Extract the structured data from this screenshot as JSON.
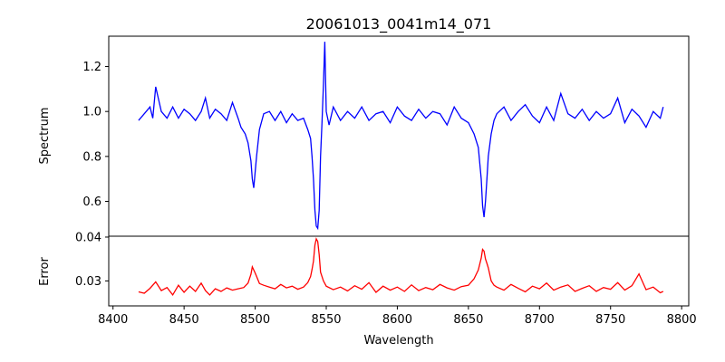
{
  "chart_data": {
    "type": "line",
    "title": "20061013_0041m14_071",
    "xlabel": "Wavelength",
    "xlim": [
      8397,
      8805
    ],
    "xticks": [
      8400,
      8450,
      8500,
      8550,
      8600,
      8650,
      8700,
      8750,
      8800
    ],
    "panels": [
      {
        "name": "spectrum",
        "ylabel": "Spectrum",
        "ylim": [
          0.445,
          1.335
        ],
        "yticks": [
          0.6,
          0.8,
          1.0,
          1.2
        ],
        "ytick_labels": [
          "0.6",
          "0.8",
          "1.0",
          "1.2"
        ],
        "series": [
          {
            "color": "#0000ff",
            "x": [
              8418,
              8422,
              8426,
              8428,
              8430,
              8434,
              8438,
              8442,
              8446,
              8450,
              8454,
              8458,
              8462,
              8465,
              8468,
              8472,
              8476,
              8480,
              8484,
              8488,
              8490,
              8493,
              8495,
              8497,
              8498,
              8499,
              8501,
              8503,
              8506,
              8510,
              8514,
              8518,
              8522,
              8526,
              8530,
              8534,
              8537,
              8539,
              8540,
              8541,
              8542,
              8543,
              8544,
              8545,
              8546,
              8547,
              8548,
              8549,
              8550,
              8552,
              8555,
              8560,
              8565,
              8570,
              8575,
              8580,
              8585,
              8590,
              8595,
              8600,
              8605,
              8610,
              8615,
              8620,
              8625,
              8630,
              8635,
              8640,
              8645,
              8650,
              8654,
              8657,
              8659,
              8660,
              8661,
              8662,
              8663,
              8664,
              8666,
              8668,
              8670,
              8675,
              8680,
              8685,
              8690,
              8695,
              8700,
              8705,
              8710,
              8715,
              8720,
              8725,
              8730,
              8735,
              8740,
              8745,
              8750,
              8755,
              8760,
              8765,
              8770,
              8775,
              8780,
              8785,
              8787
            ],
            "y": [
              0.96,
              0.99,
              1.02,
              0.97,
              1.11,
              1.0,
              0.97,
              1.02,
              0.97,
              1.01,
              0.99,
              0.96,
              1.0,
              1.06,
              0.97,
              1.01,
              0.99,
              0.96,
              1.04,
              0.97,
              0.93,
              0.9,
              0.86,
              0.78,
              0.7,
              0.66,
              0.8,
              0.92,
              0.99,
              1.0,
              0.96,
              1.0,
              0.95,
              0.99,
              0.96,
              0.97,
              0.92,
              0.88,
              0.8,
              0.7,
              0.56,
              0.49,
              0.48,
              0.56,
              0.8,
              0.95,
              1.12,
              1.31,
              1.0,
              0.94,
              1.02,
              0.96,
              1.0,
              0.97,
              1.02,
              0.96,
              0.99,
              1.0,
              0.95,
              1.02,
              0.98,
              0.96,
              1.01,
              0.97,
              1.0,
              0.99,
              0.94,
              1.02,
              0.97,
              0.95,
              0.9,
              0.84,
              0.7,
              0.58,
              0.53,
              0.6,
              0.7,
              0.8,
              0.9,
              0.96,
              0.99,
              1.02,
              0.96,
              1.0,
              1.03,
              0.98,
              0.95,
              1.02,
              0.96,
              1.08,
              0.99,
              0.97,
              1.01,
              0.96,
              1.0,
              0.97,
              0.99,
              1.06,
              0.95,
              1.01,
              0.98,
              0.93,
              1.0,
              0.97,
              1.02
            ]
          }
        ]
      },
      {
        "name": "error",
        "ylabel": "Error",
        "ylim": [
          0.0243,
          0.0402
        ],
        "yticks": [
          0.03,
          0.04
        ],
        "ytick_labels": [
          "0.03",
          "0.04"
        ],
        "series": [
          {
            "color": "#ff0000",
            "x": [
              8418,
              8422,
              8426,
              8430,
              8434,
              8438,
              8442,
              8446,
              8450,
              8454,
              8458,
              8462,
              8465,
              8468,
              8472,
              8476,
              8480,
              8484,
              8488,
              8492,
              8495,
              8497,
              8498,
              8500,
              8503,
              8506,
              8510,
              8514,
              8518,
              8522,
              8526,
              8530,
              8534,
              8537,
              8539,
              8540,
              8541,
              8542,
              8543,
              8544,
              8545,
              8546,
              8548,
              8550,
              8555,
              8560,
              8565,
              8570,
              8575,
              8580,
              8585,
              8590,
              8595,
              8600,
              8605,
              8610,
              8615,
              8620,
              8625,
              8630,
              8635,
              8640,
              8645,
              8650,
              8654,
              8657,
              8659,
              8660,
              8661,
              8662,
              8663,
              8664,
              8666,
              8668,
              8670,
              8675,
              8680,
              8685,
              8690,
              8695,
              8700,
              8705,
              8710,
              8715,
              8720,
              8725,
              8730,
              8735,
              8740,
              8745,
              8750,
              8755,
              8760,
              8765,
              8770,
              8775,
              8780,
              8785,
              8787
            ],
            "y": [
              0.0275,
              0.0272,
              0.0283,
              0.0298,
              0.0278,
              0.0285,
              0.0268,
              0.029,
              0.0274,
              0.0288,
              0.0276,
              0.0295,
              0.0278,
              0.0268,
              0.0282,
              0.0276,
              0.0284,
              0.0279,
              0.0282,
              0.0285,
              0.0295,
              0.0315,
              0.0332,
              0.0318,
              0.0294,
              0.029,
              0.0286,
              0.0282,
              0.0292,
              0.0284,
              0.0288,
              0.0281,
              0.0286,
              0.0296,
              0.031,
              0.0326,
              0.0345,
              0.0382,
              0.0396,
              0.039,
              0.036,
              0.032,
              0.03,
              0.0288,
              0.028,
              0.0286,
              0.0277,
              0.0289,
              0.0281,
              0.0296,
              0.0274,
              0.0288,
              0.0279,
              0.0286,
              0.0276,
              0.0291,
              0.0278,
              0.0285,
              0.028,
              0.0292,
              0.0284,
              0.0279,
              0.0287,
              0.029,
              0.0305,
              0.0325,
              0.0352,
              0.0372,
              0.0368,
              0.035,
              0.034,
              0.033,
              0.03,
              0.029,
              0.0286,
              0.0279,
              0.0292,
              0.0283,
              0.0275,
              0.0288,
              0.0282,
              0.0295,
              0.0279,
              0.0286,
              0.0291,
              0.0276,
              0.0283,
              0.0289,
              0.0276,
              0.0285,
              0.0281,
              0.0296,
              0.0279,
              0.0289,
              0.0316,
              0.028,
              0.0286,
              0.0273,
              0.0276
            ]
          }
        ]
      }
    ]
  }
}
